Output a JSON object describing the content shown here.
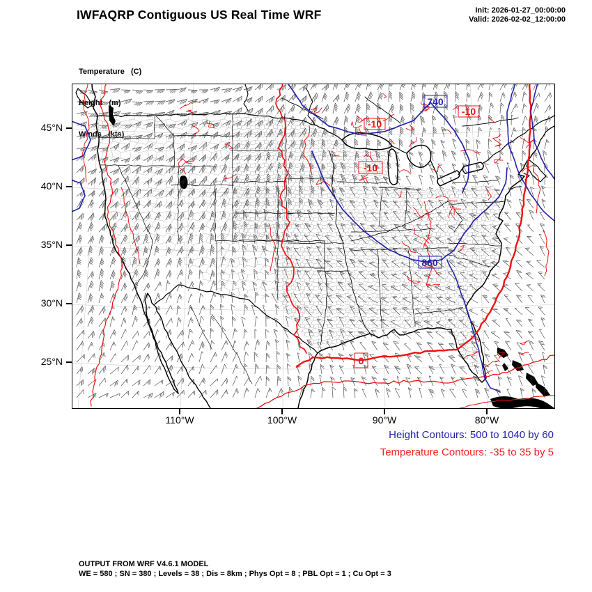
{
  "header": {
    "title": "IWFAQRP Contiguous US Real Time WRF",
    "init": "Init: 2026-01-27_00:00:00",
    "valid": "Valid: 2026-02-02_12:00:00"
  },
  "legend": {
    "line1": "Temperature   (C)",
    "line2": "Height   (m)",
    "line3": "Winds   (kts)"
  },
  "axes": {
    "lat": [
      "45°N",
      "40°N",
      "35°N",
      "30°N",
      "25°N"
    ],
    "lon": [
      "110°W",
      "100°W",
      "90°W",
      "80°W"
    ]
  },
  "contour_labels": {
    "height": [
      "740",
      "860"
    ],
    "temperature": [
      "-10",
      "-10",
      "-10",
      "0"
    ]
  },
  "captions": {
    "height": "Height Contours: 500 to 1040 by 60",
    "temperature": "Temperature Contours: -35 to 35 by 5"
  },
  "footer": {
    "line1": "OUTPUT FROM WRF V4.6.1 MODEL",
    "line2": "WE = 580 ; SN = 380 ; Levels = 38 ; Dis = 8km ; Phys Opt = 8 ; PBL Opt = 1 ; Cu Opt = 3"
  },
  "colors": {
    "height_contour": "#2323ab",
    "temperature_contour": "#ee1111",
    "coast": "#000000",
    "county": "#a8a8a8"
  }
}
